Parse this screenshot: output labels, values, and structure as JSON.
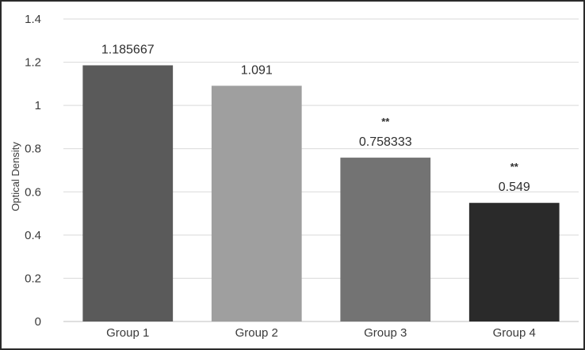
{
  "chart_data": {
    "type": "bar",
    "title": "",
    "xlabel": "",
    "ylabel": "Optical Density",
    "ylim": [
      0,
      1.4
    ],
    "yticks": [
      "0",
      "0.2",
      "0.4",
      "0.6",
      "0.8",
      "1",
      "1.2",
      "1.4"
    ],
    "grid": true,
    "categories": [
      "Group 1",
      "Group 2",
      "Group 3",
      "Group 4"
    ],
    "values": [
      1.185667,
      1.091,
      0.758333,
      0.549
    ],
    "data_labels": [
      "1.185667",
      "1.091",
      "0.758333",
      "0.549"
    ],
    "significance": [
      "",
      "",
      "**",
      "**"
    ],
    "bar_colors": [
      "#5a5a5a",
      "#9f9f9f",
      "#737373",
      "#2a2a2a"
    ]
  }
}
